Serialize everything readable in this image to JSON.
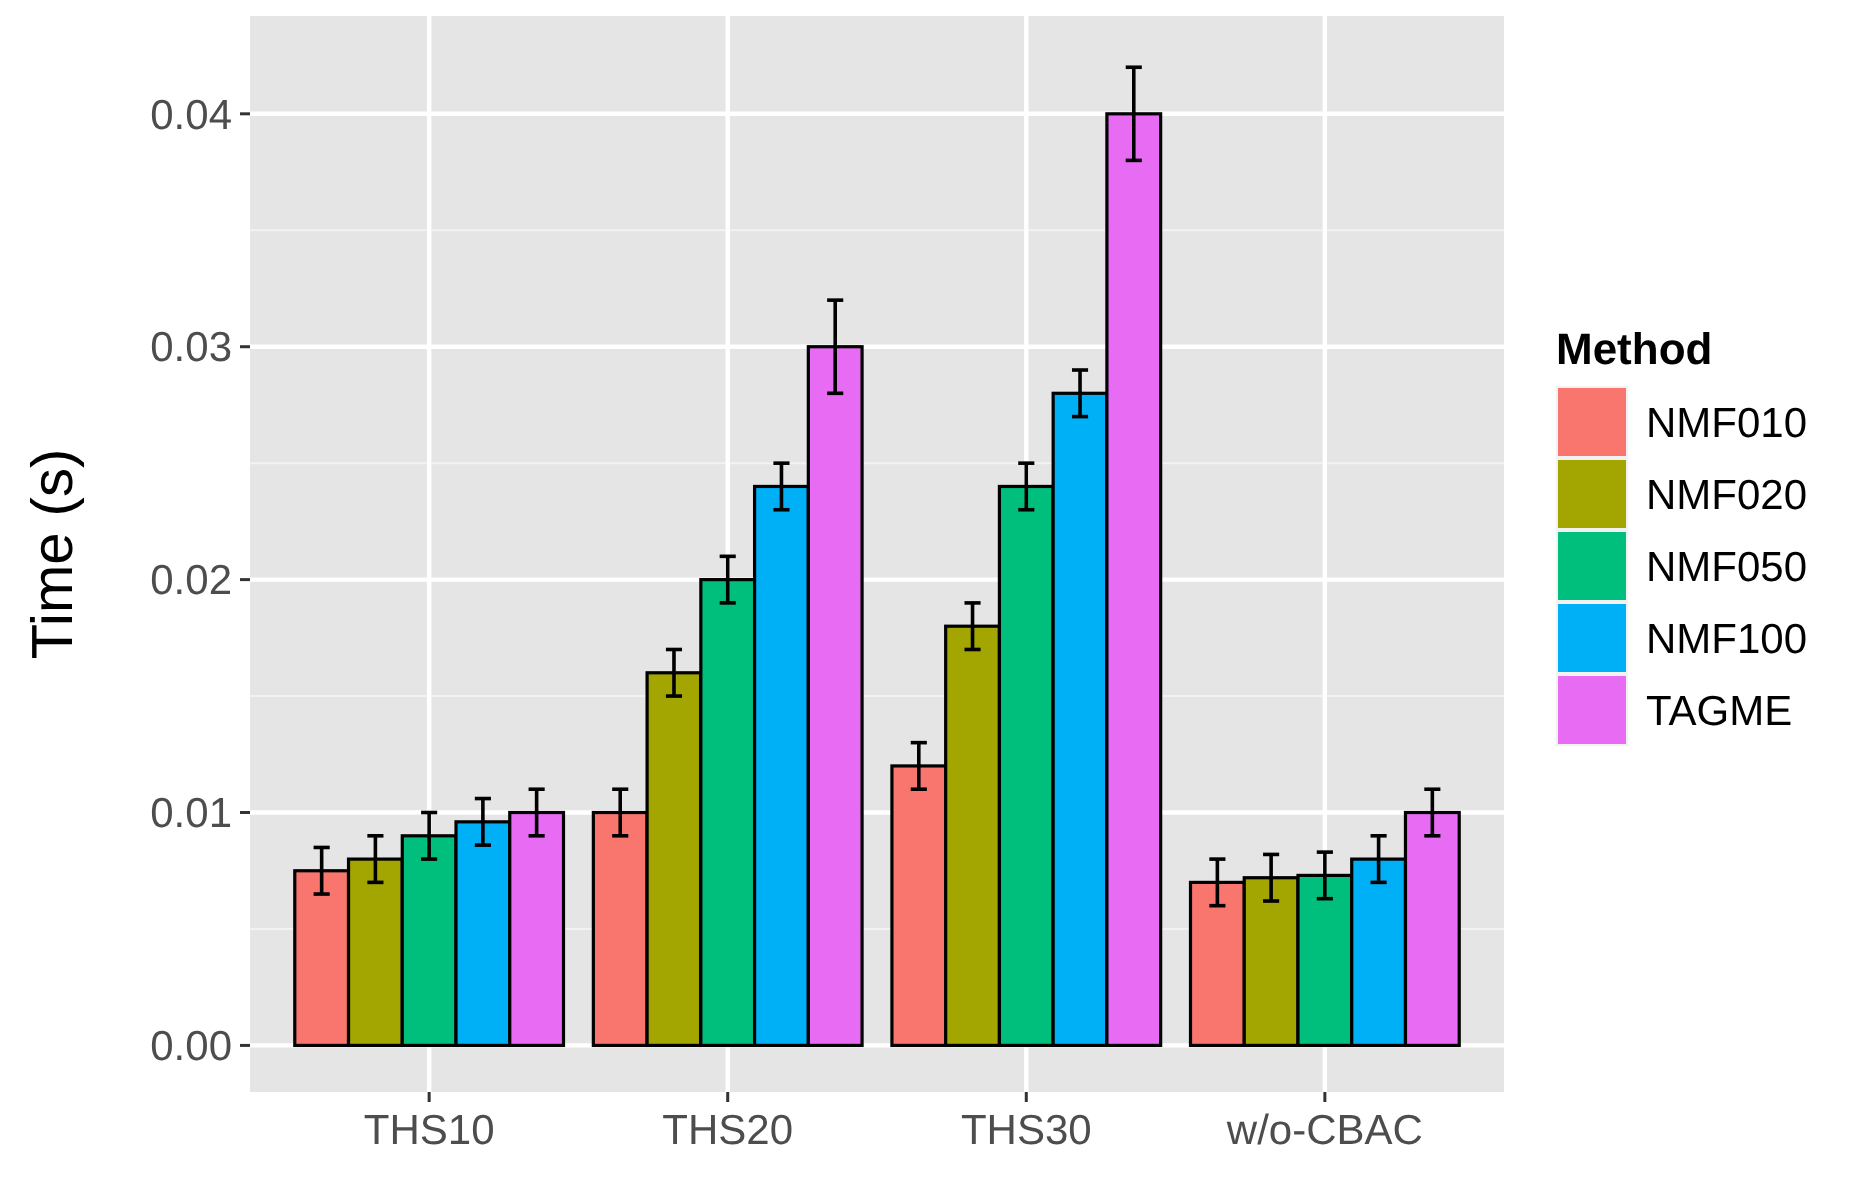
{
  "chart_data": {
    "type": "bar",
    "ylabel": "Time (s)",
    "legend_title": "Method",
    "categories": [
      "THS10",
      "THS20",
      "THS30",
      "w/o-CBAC"
    ],
    "series": [
      {
        "name": "NMF010",
        "color": "#f8766d",
        "values": [
          0.0075,
          0.01,
          0.012,
          0.007
        ],
        "errors": [
          0.001,
          0.001,
          0.001,
          0.001
        ]
      },
      {
        "name": "NMF020",
        "color": "#a3a500",
        "values": [
          0.008,
          0.016,
          0.018,
          0.0072
        ],
        "errors": [
          0.001,
          0.001,
          0.001,
          0.001
        ]
      },
      {
        "name": "NMF050",
        "color": "#00bf7d",
        "values": [
          0.009,
          0.02,
          0.024,
          0.0073
        ],
        "errors": [
          0.001,
          0.001,
          0.001,
          0.001
        ]
      },
      {
        "name": "NMF100",
        "color": "#00b0f6",
        "values": [
          0.0096,
          0.024,
          0.028,
          0.008
        ],
        "errors": [
          0.001,
          0.001,
          0.001,
          0.001
        ]
      },
      {
        "name": "TAGME",
        "color": "#e76bf3",
        "values": [
          0.01,
          0.03,
          0.04,
          0.01
        ],
        "errors": [
          0.001,
          0.002,
          0.002,
          0.001
        ]
      }
    ],
    "ylim": [
      -0.002,
      0.0442
    ],
    "yticks": [
      {
        "value": 0,
        "label": "0.00"
      },
      {
        "value": 0.01,
        "label": "0.01"
      },
      {
        "value": 0.02,
        "label": "0.02"
      },
      {
        "value": 0.03,
        "label": "0.03"
      },
      {
        "value": 0.04,
        "label": "0.04"
      }
    ],
    "grid": true,
    "legend": "right"
  }
}
